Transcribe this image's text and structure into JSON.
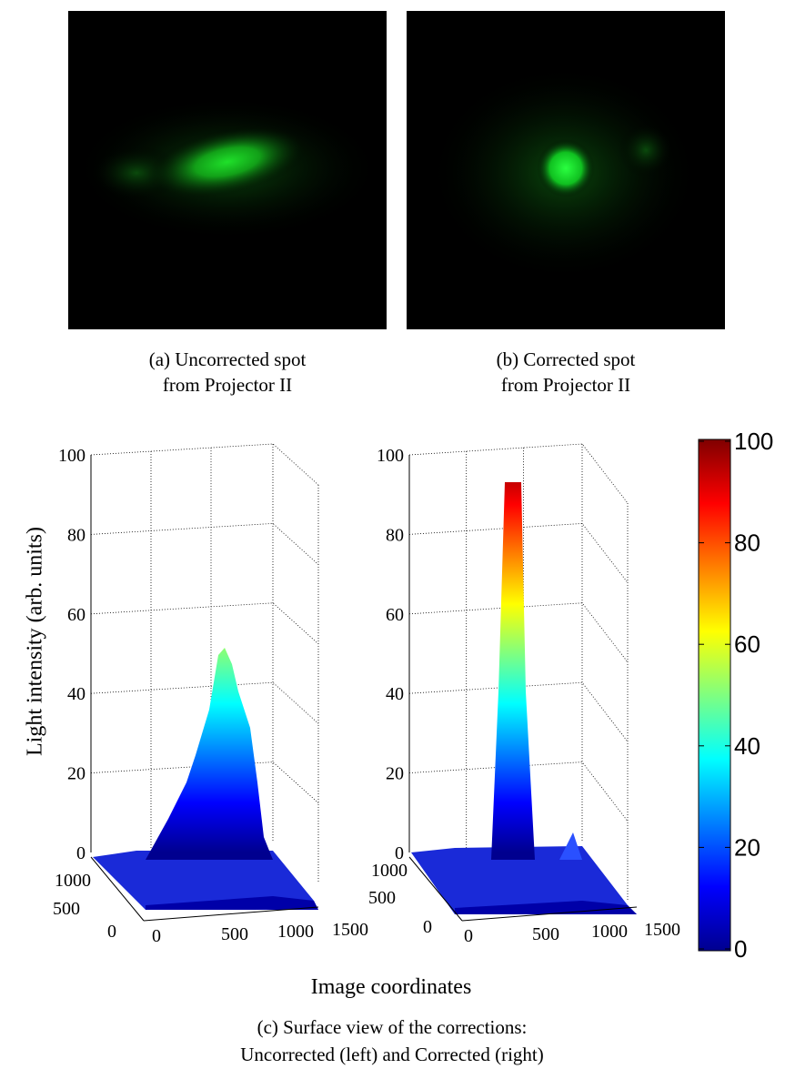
{
  "subfigures": [
    {
      "caption": [
        "(a) Uncorrected spot",
        "from Projector II"
      ]
    },
    {
      "caption": [
        "(b) Corrected spot",
        "from Projector II"
      ]
    }
  ],
  "surface_plot": {
    "ylabel": "Light intensity (arb. units)",
    "xlabel": "Image coordinates",
    "zticks": [
      0,
      20,
      40,
      60,
      80,
      100
    ],
    "xticks": [
      0,
      500,
      1000,
      1500
    ],
    "yticks": [
      0,
      500,
      1000
    ],
    "colorbar_ticks": [
      0,
      20,
      40,
      60,
      80,
      100
    ]
  },
  "caption": [
    "(c) Surface view of the corrections:",
    "Uncorrected (left) and Corrected (right)"
  ]
}
